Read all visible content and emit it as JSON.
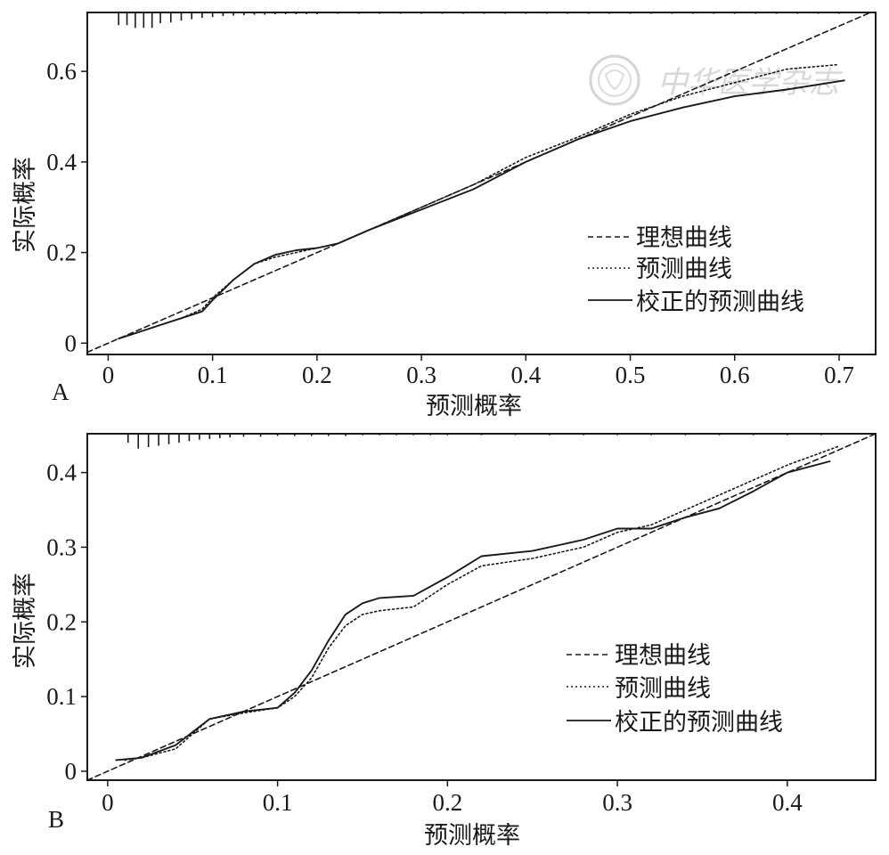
{
  "chart_data": [
    {
      "panel_label": "A",
      "type": "line",
      "xlabel": "预测概率",
      "ylabel": "实际概率",
      "xlim": [
        -0.02,
        0.735
      ],
      "ylim": [
        -0.025,
        0.73
      ],
      "x_ticks": [
        0,
        0.1,
        0.2,
        0.3,
        0.4,
        0.5,
        0.6,
        0.7
      ],
      "x_tick_labels": [
        "0",
        "0.1",
        "0.2",
        "0.3",
        "0.4",
        "0.5",
        "0.6",
        "0.7"
      ],
      "y_ticks": [
        0,
        0.2,
        0.4,
        0.6
      ],
      "y_tick_labels": [
        "0",
        "0.2",
        "0.4",
        "0.6"
      ],
      "grid": false,
      "legend_position": "bottom-right",
      "series": [
        {
          "name": "理想曲线",
          "style": "dashed",
          "x": [
            -0.02,
            0.735
          ],
          "y": [
            -0.02,
            0.735
          ]
        },
        {
          "name": "预测曲线",
          "style": "dotted",
          "x": [
            0.01,
            0.03,
            0.05,
            0.07,
            0.09,
            0.1,
            0.12,
            0.14,
            0.16,
            0.18,
            0.2,
            0.22,
            0.25,
            0.3,
            0.35,
            0.4,
            0.45,
            0.5,
            0.55,
            0.6,
            0.65,
            0.7
          ],
          "y": [
            0.01,
            0.025,
            0.04,
            0.055,
            0.075,
            0.1,
            0.14,
            0.175,
            0.19,
            0.2,
            0.21,
            0.22,
            0.25,
            0.3,
            0.35,
            0.41,
            0.455,
            0.505,
            0.545,
            0.575,
            0.605,
            0.615
          ]
        },
        {
          "name": "校正的预测曲线",
          "style": "solid",
          "x": [
            0.01,
            0.03,
            0.05,
            0.07,
            0.09,
            0.1,
            0.12,
            0.14,
            0.16,
            0.18,
            0.2,
            0.22,
            0.25,
            0.3,
            0.35,
            0.4,
            0.45,
            0.5,
            0.55,
            0.6,
            0.65,
            0.705
          ],
          "y": [
            0.01,
            0.025,
            0.04,
            0.055,
            0.07,
            0.095,
            0.14,
            0.175,
            0.195,
            0.205,
            0.21,
            0.22,
            0.25,
            0.295,
            0.34,
            0.4,
            0.45,
            0.49,
            0.52,
            0.545,
            0.56,
            0.58
          ]
        }
      ],
      "rug_top": [
        0.01,
        0.018,
        0.026,
        0.034,
        0.042,
        0.05,
        0.06,
        0.07,
        0.08,
        0.09,
        0.1,
        0.11,
        0.12,
        0.13,
        0.14,
        0.15,
        0.16,
        0.17,
        0.18,
        0.19,
        0.2,
        0.22,
        0.24,
        0.26,
        0.28,
        0.3,
        0.32,
        0.34,
        0.36,
        0.38,
        0.4,
        0.42,
        0.44,
        0.46,
        0.48,
        0.5,
        0.52,
        0.54,
        0.56,
        0.58,
        0.6,
        0.62,
        0.64,
        0.66,
        0.68,
        0.7
      ],
      "rug_lengths": [
        0.028,
        0.028,
        0.034,
        0.034,
        0.034,
        0.024,
        0.022,
        0.018,
        0.015,
        0.012,
        0.01,
        0.008,
        0.007,
        0.006,
        0.005,
        0.005,
        0.004,
        0.004,
        0.004,
        0.004,
        0.004,
        0.003,
        0.003,
        0.003,
        0.003,
        0.003,
        0.003,
        0.003,
        0.003,
        0.003,
        0.003,
        0.003,
        0.003,
        0.003,
        0.003,
        0.003,
        0.003,
        0.003,
        0.003,
        0.003,
        0.003,
        0.003,
        0.003,
        0.003,
        0.003,
        0.003
      ]
    },
    {
      "panel_label": "B",
      "type": "line",
      "xlabel": "预测概率",
      "ylabel": "实际概率",
      "xlim": [
        -0.012,
        0.452
      ],
      "ylim": [
        -0.012,
        0.452
      ],
      "x_ticks": [
        0,
        0.1,
        0.2,
        0.3,
        0.4
      ],
      "x_tick_labels": [
        "0",
        "0.1",
        "0.2",
        "0.3",
        "0.4"
      ],
      "y_ticks": [
        0,
        0.1,
        0.2,
        0.3,
        0.4
      ],
      "y_tick_labels": [
        "0",
        "0.1",
        "0.2",
        "0.3",
        "0.4"
      ],
      "grid": false,
      "legend_position": "bottom-right",
      "series": [
        {
          "name": "理想曲线",
          "style": "dashed",
          "x": [
            -0.012,
            0.452
          ],
          "y": [
            -0.012,
            0.452
          ]
        },
        {
          "name": "预测曲线",
          "style": "dotted",
          "x": [
            0.01,
            0.02,
            0.04,
            0.06,
            0.08,
            0.1,
            0.11,
            0.12,
            0.13,
            0.14,
            0.15,
            0.16,
            0.18,
            0.2,
            0.22,
            0.25,
            0.28,
            0.3,
            0.32,
            0.35,
            0.38,
            0.4,
            0.43
          ],
          "y": [
            0.015,
            0.018,
            0.03,
            0.07,
            0.078,
            0.085,
            0.1,
            0.125,
            0.165,
            0.195,
            0.21,
            0.215,
            0.22,
            0.25,
            0.275,
            0.285,
            0.3,
            0.32,
            0.33,
            0.36,
            0.39,
            0.41,
            0.435
          ]
        },
        {
          "name": "校正的预测曲线",
          "style": "solid",
          "x": [
            0.005,
            0.02,
            0.04,
            0.06,
            0.08,
            0.1,
            0.11,
            0.12,
            0.13,
            0.14,
            0.15,
            0.16,
            0.18,
            0.2,
            0.22,
            0.25,
            0.28,
            0.3,
            0.32,
            0.34,
            0.36,
            0.38,
            0.4,
            0.425
          ],
          "y": [
            0.015,
            0.018,
            0.035,
            0.07,
            0.08,
            0.085,
            0.105,
            0.135,
            0.175,
            0.21,
            0.225,
            0.232,
            0.235,
            0.26,
            0.288,
            0.295,
            0.31,
            0.325,
            0.325,
            0.34,
            0.352,
            0.375,
            0.4,
            0.415
          ]
        }
      ],
      "rug_top": [
        0.012,
        0.018,
        0.024,
        0.03,
        0.036,
        0.042,
        0.048,
        0.054,
        0.06,
        0.066,
        0.072,
        0.08,
        0.09,
        0.1,
        0.11,
        0.12,
        0.13,
        0.14,
        0.15,
        0.16,
        0.17,
        0.18,
        0.19,
        0.2,
        0.22,
        0.24,
        0.26,
        0.28,
        0.3,
        0.32,
        0.34,
        0.36,
        0.38,
        0.4,
        0.42
      ],
      "rug_lengths": [
        0.012,
        0.02,
        0.018,
        0.016,
        0.014,
        0.012,
        0.01,
        0.008,
        0.007,
        0.006,
        0.005,
        0.004,
        0.004,
        0.003,
        0.003,
        0.003,
        0.003,
        0.003,
        0.002,
        0.002,
        0.002,
        0.002,
        0.002,
        0.002,
        0.002,
        0.002,
        0.002,
        0.002,
        0.002,
        0.002,
        0.002,
        0.002,
        0.002,
        0.002,
        0.002
      ]
    }
  ],
  "watermark": {
    "text": "中华医学杂志",
    "icon": "seal-logo-icon"
  },
  "colors": {
    "ink": "#1a1a1a",
    "watermark": "#d8d8d8",
    "background": "#ffffff"
  }
}
